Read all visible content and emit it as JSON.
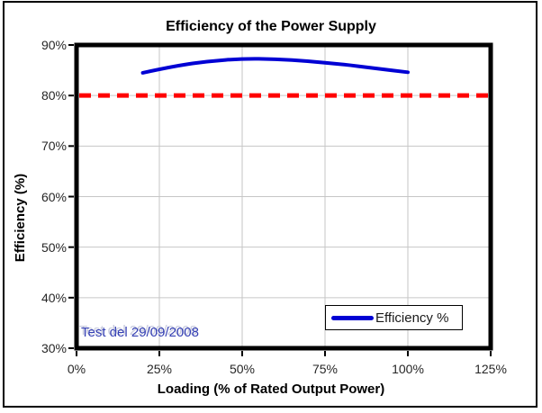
{
  "figure": {
    "background": "#ffffff",
    "frame_border_color": "#000000",
    "plot_border_color": "#000000",
    "gridline_color": "#c6c6c6",
    "tick_label_color": "#262626"
  },
  "chart_data": {
    "type": "line",
    "title": "Efficiency of the Power Supply",
    "xlabel": "Loading (% of Rated Output Power)",
    "ylabel": "Efficiency (%)",
    "xlim": [
      0,
      125
    ],
    "ylim": [
      30,
      90
    ],
    "grid": true,
    "x_ticks": {
      "values": [
        0,
        25,
        50,
        75,
        100,
        125
      ],
      "labels": [
        "0%",
        "25%",
        "50%",
        "75%",
        "100%",
        "125%"
      ]
    },
    "y_ticks": {
      "values": [
        30,
        40,
        50,
        60,
        70,
        80,
        90
      ],
      "labels": [
        "30%",
        "40%",
        "50%",
        "60%",
        "70%",
        "80%",
        "90%"
      ]
    },
    "series": [
      {
        "name": "Efficiency %",
        "color": "#0000d4",
        "line_width": 4,
        "smooth": true,
        "x": [
          20,
          30,
          40,
          50,
          60,
          70,
          80,
          90,
          100
        ],
        "y": [
          84.5,
          85.9,
          86.8,
          87.3,
          87.2,
          86.8,
          86.2,
          85.4,
          84.6
        ]
      }
    ],
    "reference_line": {
      "y": 80,
      "color": "#ff0000",
      "style": "dashed",
      "line_width": 5
    },
    "legend": {
      "position": "inside-bottom-right",
      "entries": [
        "Efficiency %"
      ]
    },
    "annotation": {
      "text": "Test del 29/09/2008",
      "color": "#3540b4"
    }
  }
}
